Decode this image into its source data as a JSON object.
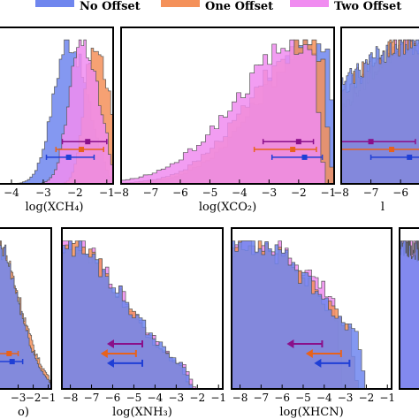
{
  "legend": {
    "placement": "top",
    "entries": [
      {
        "label": "No Offset",
        "color": "#6f86ee"
      },
      {
        "label": "One Offset",
        "color": "#f4915a"
      },
      {
        "label": "Two Offset",
        "color": "#f08cf0"
      }
    ]
  },
  "chart_data": [
    {
      "type": "histogram",
      "panel": "ch4",
      "row": 1,
      "col": 1,
      "xlabel": "log(X_CH4)",
      "xlim": [
        -4.5,
        -0.8
      ],
      "xticks": [
        "−4",
        "−3",
        "−2",
        "−1"
      ],
      "xtick_values": [
        -4,
        -3,
        -2,
        -1
      ],
      "series": [
        {
          "name": "No Offset",
          "peak": -2.2,
          "width": 0.6,
          "skew": 0.8,
          "upper_cut": -1.1
        },
        {
          "name": "One Offset",
          "peak": -1.4,
          "width": 0.5,
          "skew": 0.6,
          "upper_cut": -0.9
        },
        {
          "name": "Two Offset",
          "peak": -1.8,
          "width": 0.55,
          "skew": 0.7,
          "upper_cut": -1.0
        }
      ],
      "markers": [
        {
          "series": "Two Offset",
          "y": 0.27,
          "center": -1.6,
          "low": -2.4,
          "high": -1.0
        },
        {
          "series": "One Offset",
          "y": 0.22,
          "center": -1.8,
          "low": -2.6,
          "high": -1.1
        },
        {
          "series": "No Offset",
          "y": 0.17,
          "center": -2.2,
          "low": -2.9,
          "high": -1.4
        }
      ]
    },
    {
      "type": "histogram",
      "panel": "co2",
      "row": 1,
      "col": 2,
      "xlabel": "log(X_CO2)",
      "xlim": [
        -8,
        -0.8
      ],
      "xticks": [
        "−8",
        "−7",
        "−6",
        "−5",
        "−4",
        "−3",
        "−2",
        "−1"
      ],
      "xtick_values": [
        -8,
        -7,
        -6,
        -5,
        -4,
        -3,
        -2,
        -1
      ],
      "series": [
        {
          "name": "No Offset",
          "peak": -1.3,
          "width": 0.8,
          "skew": 2.5,
          "upper_cut": -1.0
        },
        {
          "name": "One Offset",
          "peak": -1.6,
          "width": 0.8,
          "skew": 2.5,
          "upper_cut": -1.2
        },
        {
          "name": "Two Offset",
          "peak": -1.8,
          "width": 0.9,
          "skew": 2.5,
          "upper_cut": -1.5
        }
      ],
      "markers": [
        {
          "series": "Two Offset",
          "y": 0.27,
          "center": -2.0,
          "low": -3.2,
          "high": -1.5
        },
        {
          "series": "One Offset",
          "y": 0.22,
          "center": -2.2,
          "low": -3.5,
          "high": -1.4
        },
        {
          "series": "No Offset",
          "y": 0.17,
          "center": -1.8,
          "low": -2.9,
          "high": -1.2
        }
      ]
    },
    {
      "type": "histogram",
      "panel": "co",
      "row": 1,
      "col": 3,
      "xlabel": "l",
      "xlim": [
        -8,
        -5.2
      ],
      "xticks": [
        "−8",
        "−7",
        "−6"
      ],
      "xtick_values": [
        -8,
        -7,
        -6
      ],
      "series": [
        {
          "name": "Two Offset",
          "peak": -5.4,
          "width": 1.5,
          "skew": 1.5,
          "upper_cut": -5.2
        },
        {
          "name": "One Offset",
          "peak": -5.4,
          "width": 1.8,
          "skew": 1.5,
          "upper_cut": -5.2
        },
        {
          "name": "No Offset",
          "peak": -5.4,
          "width": 2.0,
          "skew": 1.5,
          "upper_cut": -5.2
        }
      ],
      "markers": [
        {
          "series": "Two Offset",
          "y": 0.27,
          "center": -7.0,
          "low": -8.0,
          "high": -5.5
        },
        {
          "series": "One Offset",
          "y": 0.22,
          "center": -6.3,
          "low": -8.0,
          "high": -5.2
        },
        {
          "series": "No Offset",
          "y": 0.17,
          "center": -5.7,
          "low": -7.0,
          "high": -5.2
        }
      ]
    },
    {
      "type": "histogram",
      "panel": "h2o",
      "row": 2,
      "col": 1,
      "xlabel": "o)",
      "xlim": [
        -4.5,
        -0.8
      ],
      "xticks": [
        "−3",
        "−2",
        "−1"
      ],
      "xtick_values": [
        -3,
        -2,
        -1
      ],
      "series": [
        {
          "name": "One Offset",
          "peak": -4.5,
          "width": 1.6,
          "skew": 1.0,
          "upper_cut": -1.0
        },
        {
          "name": "No Offset",
          "peak": -4.5,
          "width": 1.5,
          "skew": 1.0,
          "upper_cut": -1.0
        }
      ],
      "markers": [
        {
          "series": "One Offset",
          "y": 0.22,
          "center": -3.6,
          "low": -4.5,
          "high": -3.0
        },
        {
          "series": "No Offset",
          "y": 0.17,
          "center": -3.4,
          "low": -4.5,
          "high": -2.7
        }
      ]
    },
    {
      "type": "histogram",
      "panel": "nh3",
      "row": 2,
      "col": 2,
      "xlabel": "log(X_NH3)",
      "xlim": [
        -8.4,
        -0.8
      ],
      "xticks": [
        "−8",
        "−7",
        "−6",
        "−5",
        "−4",
        "−3",
        "−2",
        "−1"
      ],
      "xtick_values": [
        -8,
        -7,
        -6,
        -5,
        -4,
        -3,
        -2,
        -1
      ],
      "series": [
        {
          "name": "Two Offset",
          "peak": -8.4,
          "width": 3.0,
          "skew": 1.0,
          "upper_cut": -2.5
        },
        {
          "name": "One Offset",
          "peak": -8.4,
          "width": 2.9,
          "skew": 1.0,
          "upper_cut": -2.7
        },
        {
          "name": "No Offset",
          "peak": -8.4,
          "width": 3.0,
          "skew": 1.0,
          "upper_cut": -2.6
        }
      ],
      "upper_limits": [
        {
          "series": "Two Offset",
          "y": 0.28,
          "value": -4.6
        },
        {
          "series": "One Offset",
          "y": 0.22,
          "value": -4.9
        },
        {
          "series": "No Offset",
          "y": 0.16,
          "value": -4.6
        }
      ]
    },
    {
      "type": "histogram",
      "panel": "hcn",
      "row": 2,
      "col": 3,
      "xlabel": "log(X_HCN)",
      "xlim": [
        -8.4,
        -0.8
      ],
      "xticks": [
        "−8",
        "−7",
        "−6",
        "−5",
        "−4",
        "−3",
        "−2",
        "−1"
      ],
      "xtick_values": [
        -8,
        -7,
        -6,
        -5,
        -4,
        -3,
        -2,
        -1
      ],
      "series": [
        {
          "name": "Two Offset",
          "peak": -7.5,
          "width": 4.0,
          "skew": 1.0,
          "upper_cut": -3.5
        },
        {
          "name": "One Offset",
          "peak": -7.8,
          "width": 3.8,
          "skew": 1.0,
          "upper_cut": -2.8
        },
        {
          "name": "No Offset",
          "peak": -7.8,
          "width": 3.8,
          "skew": 1.0,
          "upper_cut": -2.4
        }
      ],
      "upper_limits": [
        {
          "series": "Two Offset",
          "y": 0.28,
          "value": -4.1
        },
        {
          "series": "One Offset",
          "y": 0.22,
          "value": -3.2
        },
        {
          "series": "No Offset",
          "y": 0.16,
          "value": -2.8
        }
      ]
    },
    {
      "type": "histogram",
      "panel": "edge",
      "row": 2,
      "col": 4,
      "xlabel": "",
      "xlim": [
        -8.4,
        -7.0
      ],
      "xticks": [],
      "xtick_values": [],
      "series": [
        {
          "name": "Two Offset",
          "peak": -8.4,
          "width": 3.0,
          "skew": 1.0,
          "upper_cut": -7.0
        },
        {
          "name": "No Offset",
          "peak": -8.4,
          "width": 3.0,
          "skew": 1.0,
          "upper_cut": -7.0
        }
      ]
    }
  ]
}
